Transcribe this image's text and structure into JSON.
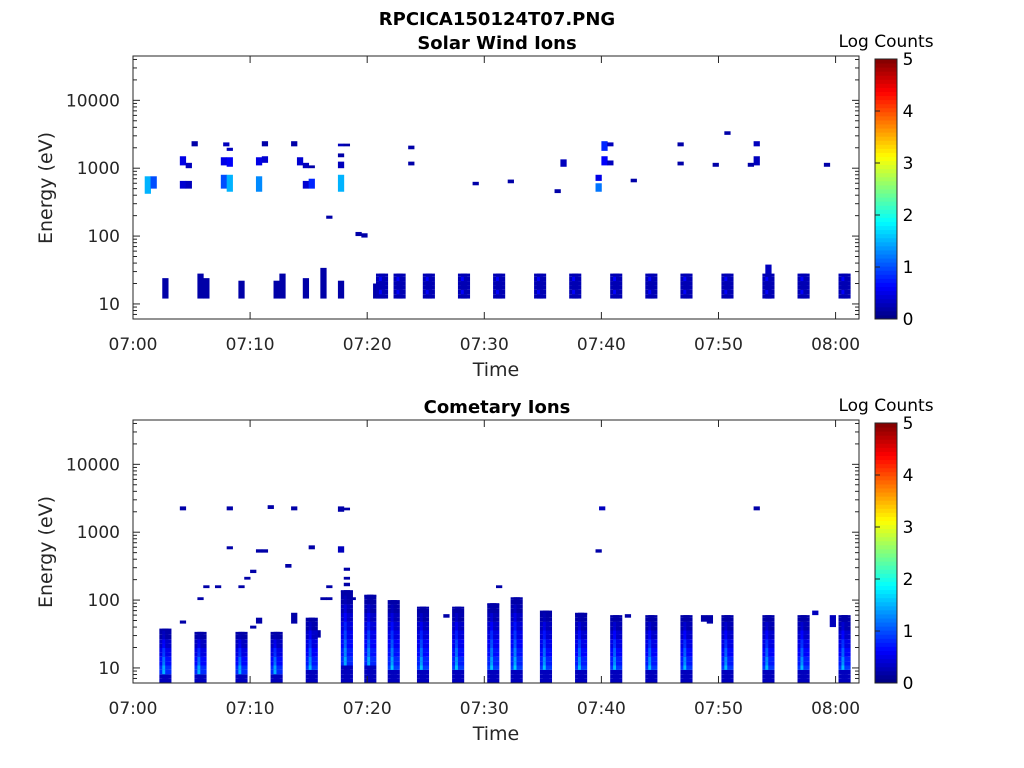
{
  "figure": {
    "title": "RPCICA150124T07.PNG"
  },
  "chart_data": [
    {
      "type": "heatmap",
      "title": "Solar Wind Ions",
      "xlabel": "Time",
      "ylabel": "Energy (eV)",
      "y_scale": "log",
      "ylim": [
        6,
        45000
      ],
      "xlim": [
        "07:00",
        "08:02"
      ],
      "x_ticks": [
        "07:00",
        "07:10",
        "07:20",
        "07:30",
        "07:40",
        "07:50",
        "08:00"
      ],
      "y_ticks": [
        {
          "value": 10,
          "label": "10"
        },
        {
          "value": 100,
          "label": "100"
        },
        {
          "value": 1000,
          "label": "1000"
        },
        {
          "value": 10000,
          "label": "10000"
        }
      ],
      "colorbar": {
        "label": "Log Counts",
        "range": [
          0,
          5
        ],
        "ticks": [
          "0",
          "1",
          "2",
          "3",
          "4",
          "5"
        ],
        "colormap": "jet"
      },
      "time_step_min": 0.5,
      "cells": [
        [
          1.0,
          420,
          760,
          1.5
        ],
        [
          1.5,
          500,
          760,
          1.0
        ],
        [
          2.5,
          12,
          24,
          0.2
        ],
        [
          4.0,
          1100,
          1500,
          0.5
        ],
        [
          4.0,
          500,
          650,
          0.4
        ],
        [
          4.5,
          1000,
          1200,
          0.3
        ],
        [
          4.5,
          500,
          650,
          0.3
        ],
        [
          5.0,
          2100,
          2500,
          0.2
        ],
        [
          5.5,
          12,
          28,
          0.2
        ],
        [
          6.0,
          12,
          24,
          0.2
        ],
        [
          7.5,
          1100,
          1450,
          0.5
        ],
        [
          7.5,
          500,
          800,
          1.0
        ],
        [
          8.0,
          1050,
          1450,
          0.6
        ],
        [
          8.0,
          450,
          800,
          1.5
        ],
        [
          7.7,
          2100,
          2400,
          0.3
        ],
        [
          8.0,
          1800,
          2000,
          0.3
        ],
        [
          9.0,
          12,
          22,
          0.2
        ],
        [
          10.5,
          1100,
          1450,
          0.5
        ],
        [
          10.5,
          450,
          760,
          1.3
        ],
        [
          11.0,
          1200,
          1500,
          0.4
        ],
        [
          11.0,
          2100,
          2500,
          0.2
        ],
        [
          12.0,
          12,
          22,
          0.2
        ],
        [
          12.5,
          12,
          28,
          0.2
        ],
        [
          13.5,
          2100,
          2500,
          0.2
        ],
        [
          14.0,
          1100,
          1450,
          0.4
        ],
        [
          14.5,
          1000,
          1200,
          0.3
        ],
        [
          14.5,
          500,
          650,
          0.4
        ],
        [
          15.0,
          500,
          700,
          0.8
        ],
        [
          15.0,
          1000,
          1100,
          0.2
        ],
        [
          14.5,
          12,
          24,
          0.2
        ],
        [
          16.0,
          12,
          34,
          0.2
        ],
        [
          16.5,
          180,
          200,
          0.2
        ],
        [
          17.5,
          450,
          800,
          1.5
        ],
        [
          17.5,
          1000,
          1250,
          0.3
        ],
        [
          17.5,
          2100,
          2300,
          0.3
        ],
        [
          18.0,
          2100,
          2300,
          0.2
        ],
        [
          17.5,
          1450,
          1650,
          0.2
        ],
        [
          17.5,
          12,
          22,
          0.2
        ],
        [
          19.0,
          100,
          115,
          0.2
        ],
        [
          19.5,
          95,
          110,
          0.2
        ],
        [
          20.5,
          12,
          20,
          0.2
        ],
        [
          23.5,
          1900,
          2150,
          0.2
        ],
        [
          23.5,
          1100,
          1250,
          0.2
        ],
        [
          29.0,
          560,
          630,
          0.2
        ],
        [
          32.0,
          600,
          680,
          0.2
        ],
        [
          36.0,
          430,
          490,
          0.2
        ],
        [
          36.5,
          1050,
          1350,
          0.3
        ],
        [
          39.5,
          450,
          600,
          1.2
        ],
        [
          39.5,
          650,
          800,
          0.5
        ],
        [
          40.0,
          1800,
          2500,
          0.8
        ],
        [
          40.0,
          1100,
          1500,
          0.6
        ],
        [
          40.5,
          1100,
          1300,
          0.3
        ],
        [
          40.5,
          2100,
          2400,
          0.3
        ],
        [
          42.5,
          620,
          700,
          0.2
        ],
        [
          46.5,
          2100,
          2400,
          0.2
        ],
        [
          46.5,
          1100,
          1250,
          0.2
        ],
        [
          49.5,
          1050,
          1200,
          0.2
        ],
        [
          50.5,
          3100,
          3500,
          0.2
        ],
        [
          52.5,
          1050,
          1200,
          0.2
        ],
        [
          53.0,
          1100,
          1500,
          0.3
        ],
        [
          53.0,
          2100,
          2500,
          0.3
        ],
        [
          54.0,
          22,
          38,
          0.3
        ],
        [
          54.0,
          12,
          22,
          0.5
        ],
        [
          59.0,
          1050,
          1200,
          0.2
        ]
      ],
      "bursts": [
        [
          21.0,
          12,
          28
        ],
        [
          22.5,
          12,
          28
        ],
        [
          25.0,
          12,
          28
        ],
        [
          28.0,
          12,
          28
        ],
        [
          31.0,
          12,
          28
        ],
        [
          34.5,
          12,
          28
        ],
        [
          37.5,
          12,
          28
        ],
        [
          41.0,
          12,
          28
        ],
        [
          44.0,
          12,
          28
        ],
        [
          47.0,
          12,
          28
        ],
        [
          50.5,
          12,
          28
        ],
        [
          54.0,
          12,
          28
        ],
        [
          57.0,
          12,
          28
        ],
        [
          60.5,
          12,
          28
        ]
      ]
    },
    {
      "type": "heatmap",
      "title": "Cometary Ions",
      "xlabel": "Time",
      "ylabel": "Energy (eV)",
      "y_scale": "log",
      "ylim": [
        6,
        45000
      ],
      "xlim": [
        "07:00",
        "08:02"
      ],
      "x_ticks": [
        "07:00",
        "07:10",
        "07:20",
        "07:30",
        "07:40",
        "07:50",
        "08:00"
      ],
      "y_ticks": [
        {
          "value": 10,
          "label": "10"
        },
        {
          "value": 100,
          "label": "100"
        },
        {
          "value": 1000,
          "label": "1000"
        },
        {
          "value": 10000,
          "label": "10000"
        }
      ],
      "colorbar": {
        "label": "Log Counts",
        "range": [
          0,
          5
        ],
        "ticks": [
          "0",
          "1",
          "2",
          "3",
          "4",
          "5"
        ],
        "colormap": "jet"
      },
      "time_step_min": 0.5,
      "cells": [
        [
          4.0,
          2100,
          2400,
          0.2
        ],
        [
          8.0,
          2100,
          2400,
          0.2
        ],
        [
          11.5,
          2200,
          2500,
          0.2
        ],
        [
          13.5,
          2100,
          2400,
          0.2
        ],
        [
          17.5,
          2000,
          2400,
          0.2
        ],
        [
          18.0,
          2100,
          2300,
          0.2
        ],
        [
          39.8,
          2100,
          2400,
          0.3
        ],
        [
          53.0,
          2100,
          2400,
          0.2
        ],
        [
          8.0,
          560,
          620,
          0.2
        ],
        [
          10.5,
          500,
          560,
          0.2
        ],
        [
          11.0,
          500,
          560,
          0.2
        ],
        [
          13.0,
          300,
          340,
          0.2
        ],
        [
          15.0,
          560,
          640,
          0.2
        ],
        [
          17.5,
          500,
          620,
          0.3
        ],
        [
          39.5,
          500,
          560,
          0.2
        ],
        [
          6.0,
          150,
          165,
          0.2
        ],
        [
          7.0,
          150,
          165,
          0.2
        ],
        [
          5.5,
          100,
          110,
          0.2
        ],
        [
          9.0,
          150,
          165,
          0.2
        ],
        [
          9.5,
          200,
          220,
          0.2
        ],
        [
          10.0,
          250,
          280,
          0.2
        ],
        [
          16.5,
          150,
          165,
          0.2
        ],
        [
          16.0,
          100,
          110,
          0.2
        ],
        [
          16.5,
          100,
          110,
          0.2
        ],
        [
          18.0,
          270,
          300,
          0.2
        ],
        [
          18.0,
          200,
          220,
          0.2
        ],
        [
          18.0,
          160,
          180,
          0.2
        ],
        [
          18.5,
          100,
          110,
          0.2
        ],
        [
          31.0,
          150,
          165,
          0.2
        ],
        [
          4.0,
          45,
          50,
          0.2
        ],
        [
          10.0,
          38,
          42,
          0.2
        ],
        [
          10.5,
          45,
          55,
          0.2
        ],
        [
          13.5,
          45,
          65,
          0.2
        ],
        [
          15.5,
          28,
          36,
          0.2
        ],
        [
          26.5,
          55,
          62,
          0.2
        ],
        [
          42.0,
          55,
          62,
          0.2
        ],
        [
          48.5,
          48,
          60,
          0.2
        ],
        [
          49.0,
          45,
          60,
          0.2
        ],
        [
          58.0,
          60,
          70,
          0.3
        ],
        [
          59.5,
          40,
          60,
          0.3
        ],
        [
          60.5,
          40,
          60,
          0.3
        ]
      ],
      "bursts": [
        [
          2.5,
          6,
          38
        ],
        [
          5.5,
          6,
          34
        ],
        [
          9.0,
          6,
          34
        ],
        [
          12.0,
          6,
          34
        ],
        [
          15.0,
          6,
          55
        ],
        [
          18.0,
          6,
          140
        ],
        [
          20.0,
          6,
          120
        ],
        [
          22.0,
          6,
          100
        ],
        [
          24.5,
          6,
          80
        ],
        [
          27.5,
          6,
          80
        ],
        [
          30.5,
          6,
          90
        ],
        [
          32.5,
          6,
          110
        ],
        [
          35.0,
          6,
          70
        ],
        [
          38.0,
          6,
          65
        ],
        [
          41.0,
          6,
          60
        ],
        [
          44.0,
          6,
          60
        ],
        [
          47.0,
          6,
          60
        ],
        [
          50.5,
          6,
          60
        ],
        [
          54.0,
          6,
          60
        ],
        [
          57.0,
          6,
          60
        ],
        [
          60.5,
          6,
          60
        ]
      ]
    }
  ]
}
